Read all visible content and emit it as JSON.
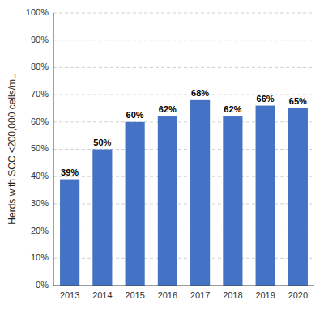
{
  "chart_data": {
    "type": "bar",
    "categories": [
      "2013",
      "2014",
      "2015",
      "2016",
      "2017",
      "2018",
      "2019",
      "2020"
    ],
    "values": [
      39,
      50,
      60,
      62,
      68,
      62,
      66,
      65
    ],
    "value_labels": [
      "39%",
      "50%",
      "60%",
      "62%",
      "68%",
      "62%",
      "66%",
      "65%"
    ],
    "data_labels": true,
    "color": "#4472C4",
    "y_label": "Herds with SCC <200,000 cells/mL",
    "ylim": [
      0,
      100
    ],
    "yticks": [
      {
        "value": 0,
        "label": "0%"
      },
      {
        "value": 10,
        "label": "10%"
      },
      {
        "value": 20,
        "label": "20%"
      },
      {
        "value": 30,
        "label": "30%"
      },
      {
        "value": 40,
        "label": "40%"
      },
      {
        "value": 50,
        "label": "50%"
      },
      {
        "value": 60,
        "label": "60%"
      },
      {
        "value": 70,
        "label": "70%"
      },
      {
        "value": 80,
        "label": "80%"
      },
      {
        "value": 90,
        "label": "90%"
      },
      {
        "value": 100,
        "label": "100%"
      }
    ],
    "grid": true
  }
}
